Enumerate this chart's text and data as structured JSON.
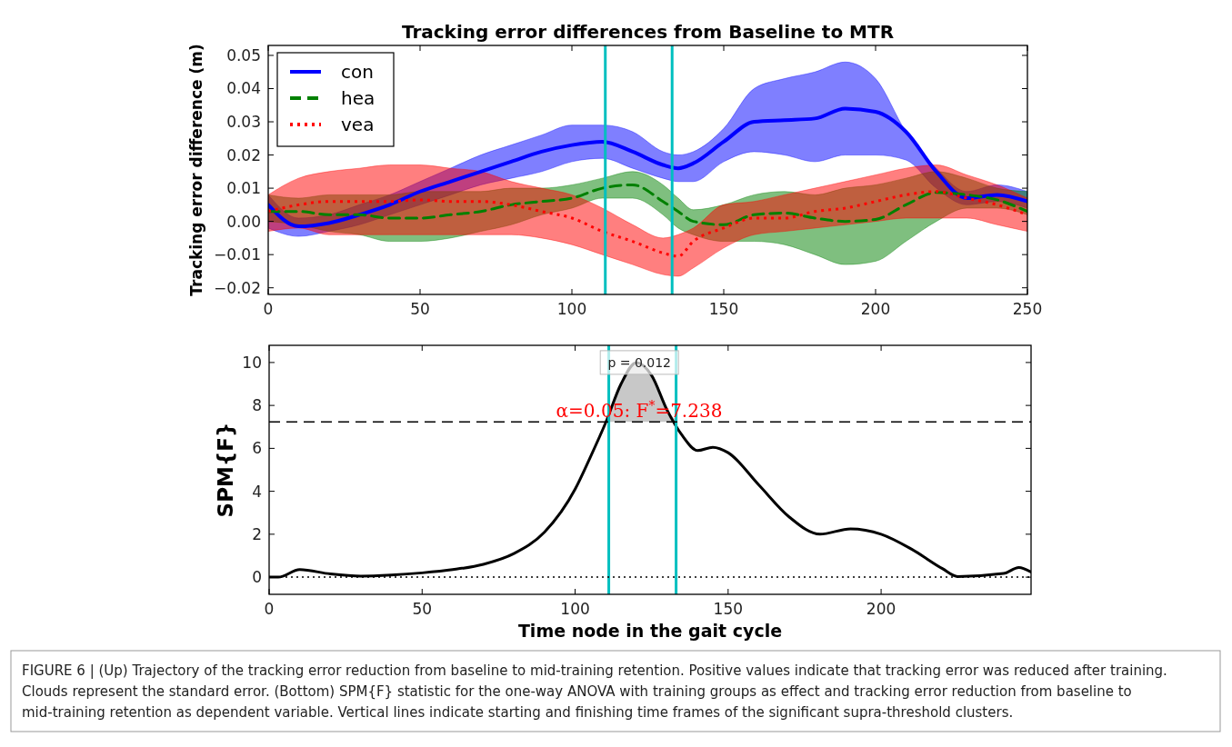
{
  "chart_data": [
    {
      "type": "line",
      "title": "Tracking error differences from Baseline to MTR",
      "ylabel": "Tracking error difference (m)",
      "xlim": [
        0,
        250
      ],
      "xticks": [
        0,
        50,
        100,
        150,
        200,
        250
      ],
      "ylim": [
        -0.022,
        0.053
      ],
      "yticks": [
        {
          "value": -0.02,
          "label": "−0.02"
        },
        {
          "value": -0.01,
          "label": "−0.01"
        },
        {
          "value": 0,
          "label": "0.00"
        },
        0.01,
        0.02,
        0.03,
        0.04,
        0.05
      ],
      "legend": "top left",
      "grid": false,
      "marker": "none",
      "x": [
        0,
        10,
        20,
        30,
        40,
        50,
        60,
        70,
        80,
        90,
        100,
        110,
        120,
        130,
        135,
        140,
        150,
        160,
        170,
        180,
        190,
        200,
        210,
        220,
        230,
        240,
        250
      ],
      "series": [
        {
          "name": "con",
          "color": "#0000ff",
          "line_style": "solid",
          "values": [
            0.005,
            -0.0015,
            -0.0005,
            0.002,
            0.005,
            0.009,
            0.012,
            0.015,
            0.018,
            0.021,
            0.023,
            0.024,
            0.021,
            0.017,
            0.016,
            0.0175,
            0.024,
            0.03,
            0.0305,
            0.031,
            0.034,
            0.033,
            0.027,
            0.015,
            0.007,
            0.008,
            0.006
          ],
          "lower": [
            -0.002,
            -0.0045,
            -0.003,
            -0.001,
            0.002,
            0.005,
            0.008,
            0.011,
            0.013,
            0.015,
            0.018,
            0.019,
            0.016,
            0.013,
            0.012,
            0.012,
            0.018,
            0.021,
            0.02,
            0.018,
            0.02,
            0.02,
            0.0185,
            0.01,
            0.005,
            0.006,
            0.004
          ],
          "upper": [
            0.008,
            0.001,
            0.002,
            0.005,
            0.008,
            0.012,
            0.016,
            0.02,
            0.023,
            0.026,
            0.029,
            0.029,
            0.027,
            0.021,
            0.02,
            0.021,
            0.028,
            0.04,
            0.043,
            0.045,
            0.048,
            0.043,
            0.027,
            0.016,
            0.009,
            0.011,
            0.009
          ]
        },
        {
          "name": "hea",
          "color": "#008000",
          "line_style": "dashed",
          "values": [
            0.003,
            0.003,
            0.002,
            0.002,
            0.001,
            0.001,
            0.002,
            0.003,
            0.005,
            0.006,
            0.007,
            0.01,
            0.011,
            0.006,
            0.003,
            0,
            -0.001,
            0.002,
            0.0025,
            0.001,
            0,
            0.0006,
            0.005,
            0.0087,
            0.008,
            0.0065,
            0.003
          ],
          "lower": [
            0,
            -0.001,
            -0.003,
            -0.004,
            -0.006,
            -0.006,
            -0.005,
            -0.003,
            -0.001,
            0.002,
            0.004,
            0.007,
            0.007,
            0.002,
            -0.002,
            -0.004,
            -0.006,
            -0.006,
            -0.007,
            -0.01,
            -0.013,
            -0.012,
            -0.006,
            0,
            0.004,
            0.004,
            0.002
          ],
          "upper": [
            0.008,
            0.007,
            0.008,
            0.008,
            0.008,
            0.009,
            0.009,
            0.009,
            0.01,
            0.01,
            0.011,
            0.013,
            0.015,
            0.011,
            0.007,
            0.0035,
            0.005,
            0.008,
            0.009,
            0.008,
            0.01,
            0.011,
            0.013,
            0.015,
            0.013,
            0.01,
            0.009
          ]
        },
        {
          "name": "vea",
          "color": "#ff0000",
          "line_style": "dotted",
          "values": [
            0.003,
            0.005,
            0.006,
            0.006,
            0.006,
            0.0065,
            0.006,
            0.006,
            0.005,
            0.003,
            0.001,
            -0.003,
            -0.006,
            -0.0095,
            -0.0105,
            -0.006,
            -0.002,
            0.001,
            0.001,
            0.003,
            0.004,
            0.006,
            0.008,
            0.009,
            0.007,
            0.005,
            0.002
          ],
          "lower": [
            -0.003,
            -0.002,
            -0.004,
            -0.004,
            -0.004,
            -0.004,
            -0.004,
            -0.004,
            -0.004,
            -0.005,
            -0.007,
            -0.01,
            -0.013,
            -0.016,
            -0.0165,
            -0.014,
            -0.008,
            -0.004,
            -0.003,
            -0.002,
            -0.001,
            0,
            0.001,
            0.001,
            0.001,
            -0.001,
            -0.003
          ],
          "upper": [
            0.008,
            0.013,
            0.015,
            0.016,
            0.017,
            0.017,
            0.016,
            0.015,
            0.012,
            0.01,
            0.008,
            0.004,
            -0.001,
            -0.005,
            -0.004,
            -0.002,
            0.005,
            0.006,
            0.008,
            0.01,
            0.012,
            0.014,
            0.016,
            0.017,
            0.014,
            0.011,
            0.007
          ]
        }
      ],
      "ref_lines": [
        {
          "axis": "x",
          "value": 111,
          "color": "#00bfbf"
        },
        {
          "axis": "x",
          "value": 133,
          "color": "#00bfbf"
        }
      ]
    },
    {
      "type": "line",
      "ylabel": "SPM{F}",
      "xlabel": "Time node in the gait cycle",
      "xlim": [
        0,
        249
      ],
      "xticks": [
        0,
        50,
        100,
        150,
        200
      ],
      "ylim": [
        -0.8,
        10.8
      ],
      "yticks": [
        0,
        2,
        4,
        6,
        8,
        10
      ],
      "grid": false,
      "marker": "none",
      "series": [
        {
          "color": "#000000",
          "line_style": "solid",
          "x": [
            0,
            3,
            10,
            20,
            30,
            40,
            50,
            60,
            70,
            80,
            90,
            100,
            105,
            110,
            115,
            120,
            125,
            130,
            135,
            140,
            145,
            150,
            160,
            170,
            180,
            190,
            200,
            210,
            220,
            225,
            240,
            245,
            249
          ],
          "values": [
            0,
            0,
            0.35,
            0.15,
            0.05,
            0.1,
            0.2,
            0.35,
            0.6,
            1.1,
            2.1,
            4.1,
            5.6,
            7.2,
            9,
            10,
            9.4,
            7.8,
            6.6,
            5.9,
            6.05,
            5.8,
            4.3,
            2.8,
            2,
            2.25,
            2,
            1.3,
            0.4,
            0.03,
            0.17,
            0.45,
            0.24
          ]
        }
      ],
      "ref_lines": [
        {
          "axis": "x",
          "value": 111,
          "color": "#00bfbf"
        },
        {
          "axis": "x",
          "value": 133,
          "color": "#00bfbf"
        },
        {
          "axis": "y",
          "value": 7.238,
          "label": "α=0.05:  F$^{*}$=7.238",
          "color": "#000000",
          "line_style": "dashed"
        },
        {
          "axis": "y",
          "value": 0,
          "color": "#000000",
          "line_style": "dotted"
        }
      ],
      "annotations": [
        {
          "text": "p = 0.012",
          "x": 121,
          "y": 10
        },
        "FIGURE 6 | (Up) Trajectory of the tracking error reduction from baseline to mid-training retention. Positive values indicate that tracking error was reduced after training. Clouds represent the standard error. (Bottom) SPM{F} statistic for the one-way ANOVA with training groups as effect and tracking error reduction from baseline to mid-training retention as dependent variable. Vertical lines indicate starting and finishing time frames of the significant supra-threshold clusters."
      ]
    }
  ]
}
